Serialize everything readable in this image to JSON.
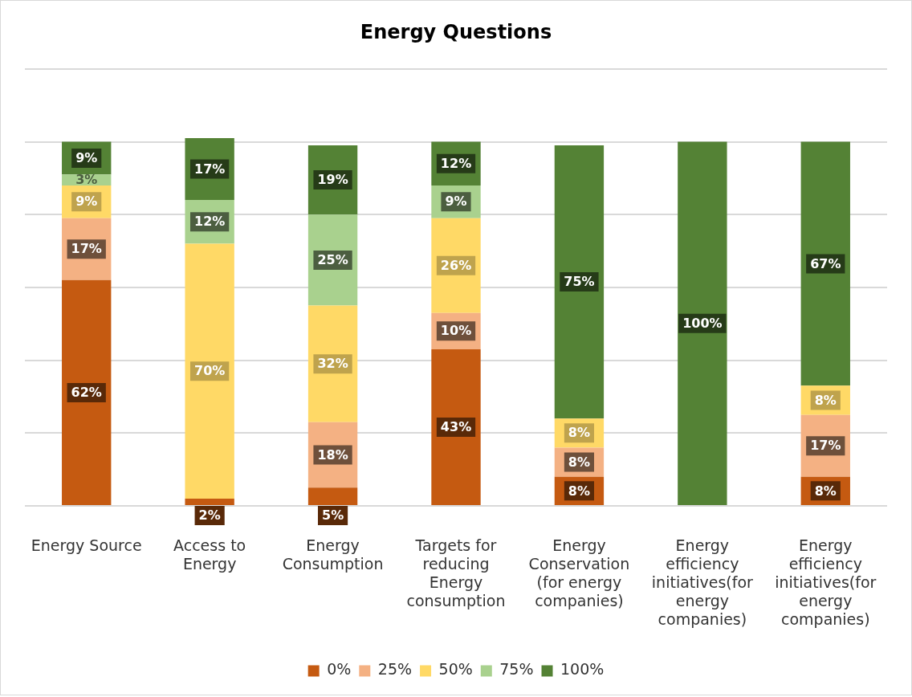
{
  "chart_data": {
    "type": "bar",
    "title": "Energy Questions",
    "stacked": true,
    "grid": "y",
    "legend": "bottom",
    "tick_labels": "x",
    "categories": [
      "Energy Source",
      "Access to Energy",
      "Energy Consumption",
      "Targets for reducing Energy consumption",
      "Energy Conservation (for energy companies)",
      "Energy efficiency initiatives(for energy companies)",
      "Energy efficiency initiatives(for energy companies)"
    ],
    "series": [
      {
        "name": "0%",
        "color": "#c55a11",
        "values": [
          62,
          2,
          5,
          43,
          8,
          null,
          8
        ],
        "value_labels": [
          "62%",
          "2%",
          "5%",
          "43%",
          "8%",
          null,
          "8%"
        ]
      },
      {
        "name": "25%",
        "color": "#f4b183",
        "values": [
          17,
          null,
          18,
          10,
          8,
          null,
          17
        ],
        "value_labels": [
          "17%",
          null,
          "18%",
          "10%",
          "8%",
          null,
          "17%"
        ]
      },
      {
        "name": "50%",
        "color": "#ffd966",
        "values": [
          9,
          70,
          32,
          26,
          8,
          null,
          8
        ],
        "value_labels": [
          "9%",
          "70%",
          "32%",
          "26%",
          "8%",
          null,
          "8%"
        ]
      },
      {
        "name": "75%",
        "color": "#a9d18e",
        "values": [
          3,
          12,
          25,
          9,
          null,
          null,
          null
        ],
        "value_labels": [
          "3%",
          "12%",
          "25%",
          "9%",
          null,
          null,
          null
        ]
      },
      {
        "name": "100%",
        "color": "#548235",
        "values": [
          9,
          17,
          19,
          12,
          75,
          100,
          67
        ],
        "value_labels": [
          "9%",
          "17%",
          "19%",
          "12%",
          "75%",
          "100%",
          "67%"
        ]
      }
    ]
  }
}
